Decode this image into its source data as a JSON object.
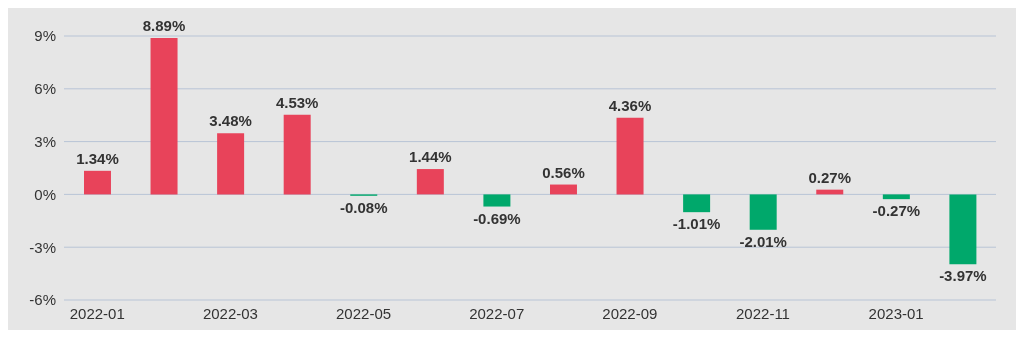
{
  "chart_data": {
    "type": "bar",
    "categories": [
      "2022-01",
      null,
      "2022-03",
      null,
      "2022-05",
      null,
      "2022-07",
      null,
      "2022-09",
      null,
      "2022-11",
      null,
      "2023-01",
      null
    ],
    "values": [
      1.34,
      8.89,
      3.48,
      4.53,
      -0.08,
      1.44,
      -0.69,
      0.56,
      4.36,
      -1.01,
      -2.01,
      0.27,
      -0.27,
      -3.97
    ],
    "colors": [
      "#e8435a",
      "#e8435a",
      "#e8435a",
      "#e8435a",
      "#00a86b",
      "#e8435a",
      "#00a86b",
      "#e8435a",
      "#e8435a",
      "#00a86b",
      "#00a86b",
      "#e8435a",
      "#00a86b",
      "#00a86b"
    ],
    "value_labels": [
      "1.34%",
      "8.89%",
      "3.48%",
      "4.53%",
      "-0.08%",
      "1.44%",
      "-0.69%",
      "0.56%",
      "4.36%",
      "-1.01%",
      "-2.01%",
      "0.27%",
      "-0.27%",
      "-3.97%"
    ],
    "ylim": [
      -6,
      9
    ],
    "yticks": [
      {
        "value": -6,
        "label": "-6%"
      },
      {
        "value": -3,
        "label": "-3%"
      },
      {
        "value": 0,
        "label": "0%"
      },
      {
        "value": 3,
        "label": "3%"
      },
      {
        "value": 6,
        "label": "6%"
      },
      {
        "value": 9,
        "label": "9%"
      }
    ],
    "grid": "y"
  }
}
